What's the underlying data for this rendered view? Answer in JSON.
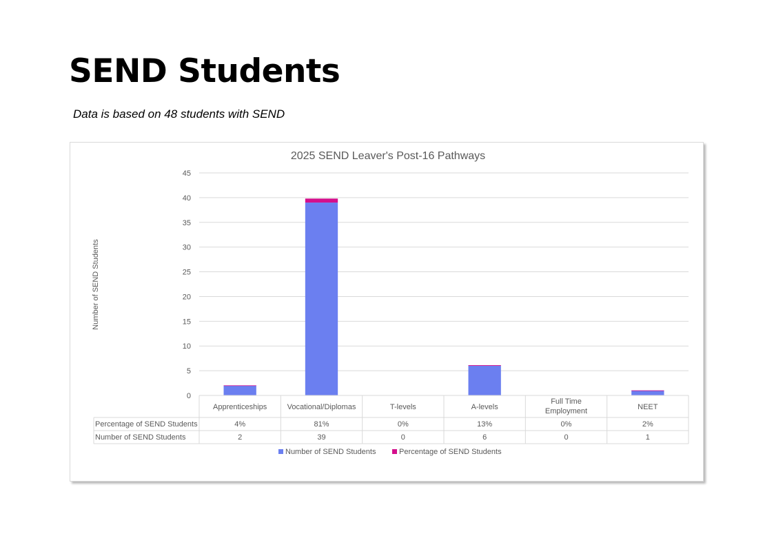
{
  "page": {
    "title": "SEND Students",
    "note": "Data is based on 48 students with SEND"
  },
  "colors": {
    "number_series": "#6b7ff0",
    "percentage_series": "#d40f8c",
    "grid": "#d9d9d9",
    "text": "#595959"
  },
  "chart_data": {
    "type": "bar",
    "stacked": true,
    "title": "2025 SEND Leaver's Post-16 Pathways",
    "xlabel": "",
    "ylabel": "Number of SEND Students",
    "ylim": [
      0,
      45
    ],
    "yticks": [
      0,
      5,
      10,
      15,
      20,
      25,
      30,
      35,
      40,
      45
    ],
    "grid": true,
    "legend_position": "bottom",
    "categories": [
      "Apprenticeships",
      "Vocational/Diplomas",
      "T-levels",
      "A-levels",
      "Full Time Employment",
      "NEET"
    ],
    "series": [
      {
        "name": "Number of SEND Students",
        "color": "#6b7ff0",
        "values": [
          2,
          39,
          0,
          6,
          0,
          1
        ]
      },
      {
        "name": "Percentage of SEND Students",
        "color": "#d40f8c",
        "values": [
          0.04,
          0.81,
          0,
          0.13,
          0,
          0.02
        ]
      }
    ],
    "data_table": {
      "rows": [
        {
          "label": "Percentage of SEND Students",
          "cells": [
            "4%",
            "81%",
            "0%",
            "13%",
            "0%",
            "2%"
          ]
        },
        {
          "label": "Number of SEND Students",
          "cells": [
            "2",
            "39",
            "0",
            "6",
            "0",
            "1"
          ]
        }
      ]
    }
  }
}
